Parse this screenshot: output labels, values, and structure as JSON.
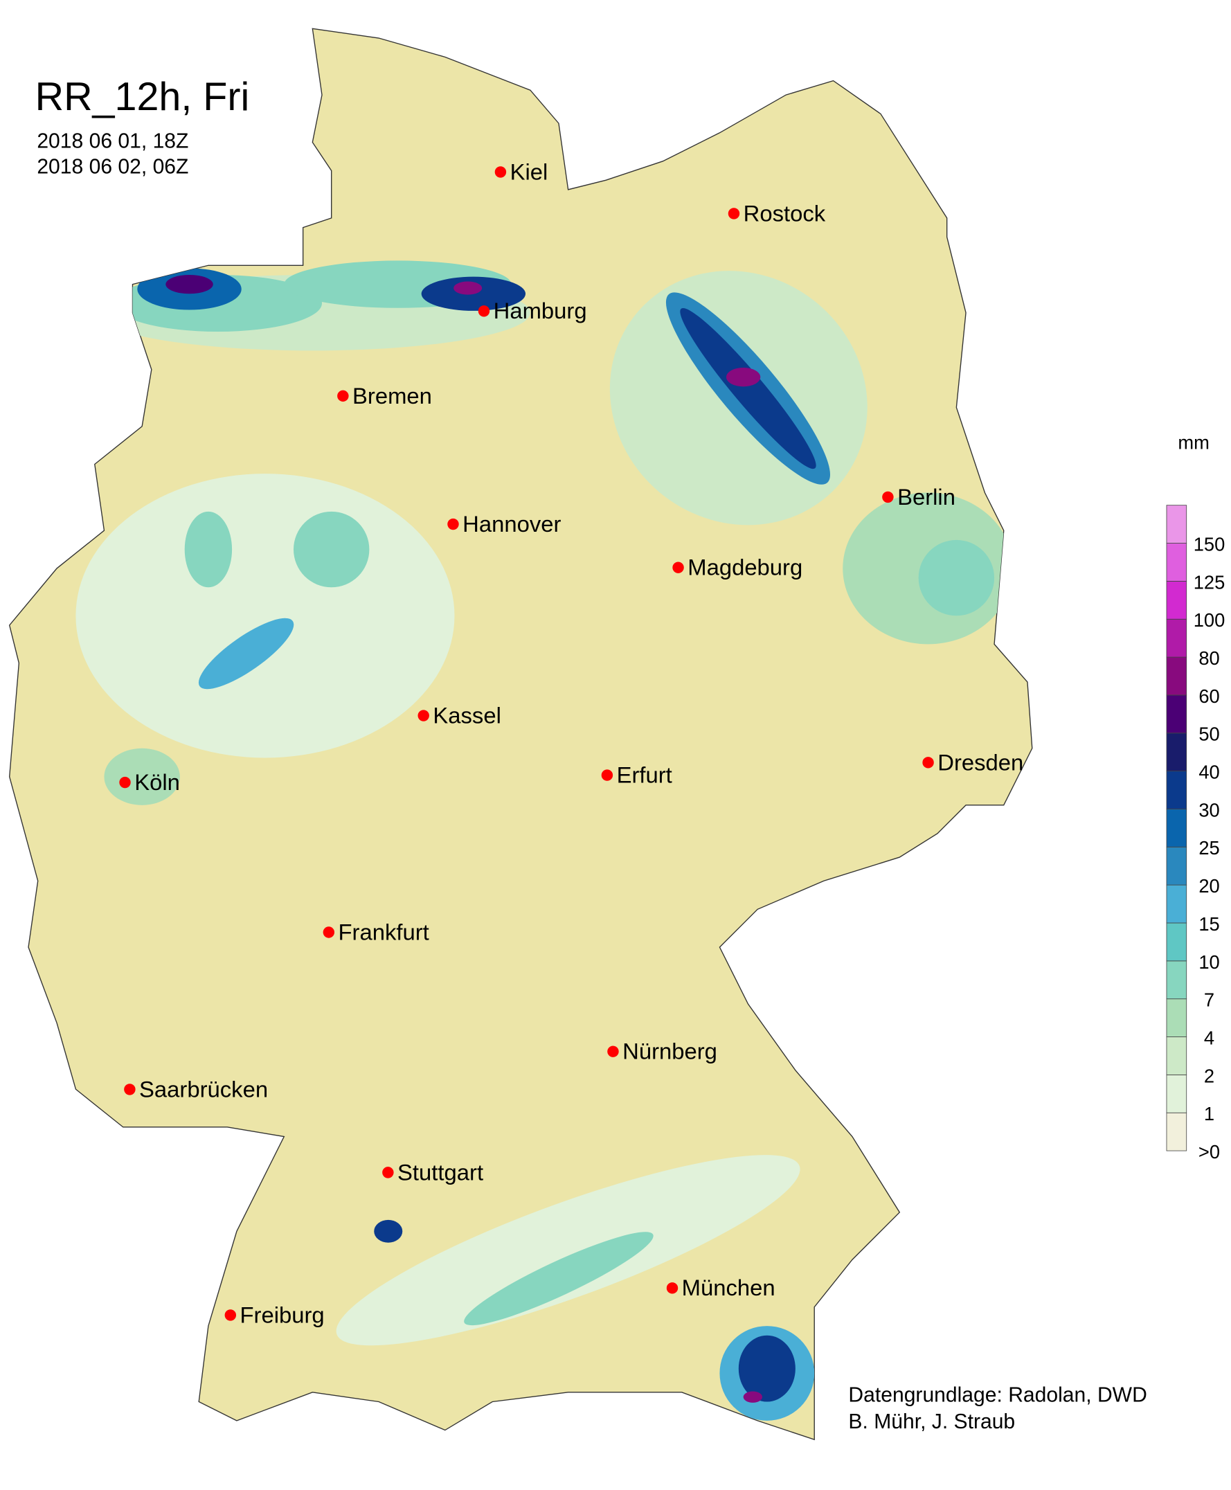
{
  "header": {
    "title": "RR_12h, Fri",
    "period_start": "2018 06 01, 18Z",
    "period_end": "2018 06 02, 06Z"
  },
  "map": {
    "land_color": "#ece5a8",
    "city_marker_color": "#ff0000",
    "cities": [
      {
        "name": "Kiel",
        "lon": 10.13,
        "lat": 54.32
      },
      {
        "name": "Rostock",
        "lon": 12.1,
        "lat": 54.09
      },
      {
        "name": "Hamburg",
        "lon": 9.99,
        "lat": 53.55
      },
      {
        "name": "Bremen",
        "lon": 8.8,
        "lat": 53.08
      },
      {
        "name": "Hannover",
        "lon": 9.73,
        "lat": 52.37
      },
      {
        "name": "Berlin",
        "lon": 13.4,
        "lat": 52.52
      },
      {
        "name": "Magdeburg",
        "lon": 11.63,
        "lat": 52.13
      },
      {
        "name": "Kassel",
        "lon": 9.48,
        "lat": 51.31
      },
      {
        "name": "Dresden",
        "lon": 13.74,
        "lat": 51.05
      },
      {
        "name": "Köln",
        "lon": 6.96,
        "lat": 50.94
      },
      {
        "name": "Erfurt",
        "lon": 11.03,
        "lat": 50.98
      },
      {
        "name": "Frankfurt",
        "lon": 8.68,
        "lat": 50.11
      },
      {
        "name": "Nürnberg",
        "lon": 11.08,
        "lat": 49.45
      },
      {
        "name": "Saarbrücken",
        "lon": 7.0,
        "lat": 49.24
      },
      {
        "name": "Stuttgart",
        "lon": 9.18,
        "lat": 48.78
      },
      {
        "name": "München",
        "lon": 11.58,
        "lat": 48.14
      },
      {
        "name": "Freiburg",
        "lon": 7.85,
        "lat": 47.99
      }
    ]
  },
  "legend": {
    "unit": "mm",
    "labels": [
      ">0",
      "1",
      "2",
      "4",
      "7",
      "10",
      "15",
      "20",
      "25",
      "30",
      "40",
      "50",
      "60",
      "80",
      "100",
      "125",
      "150"
    ],
    "colors": [
      "#f2f0dc",
      "#e1f2da",
      "#cde9c7",
      "#abddb6",
      "#87d6bf",
      "#5fc7c4",
      "#4aafd6",
      "#2a88be",
      "#0a65ad",
      "#0b3a8c",
      "#191c6b",
      "#4b0075",
      "#880a7e",
      "#b01ba8",
      "#d22ad0",
      "#df5fdf",
      "#ea96e8"
    ]
  },
  "credits": {
    "line1": "Datengrundlage: Radolan, DWD",
    "line2": "B. Mühr, J. Straub"
  }
}
